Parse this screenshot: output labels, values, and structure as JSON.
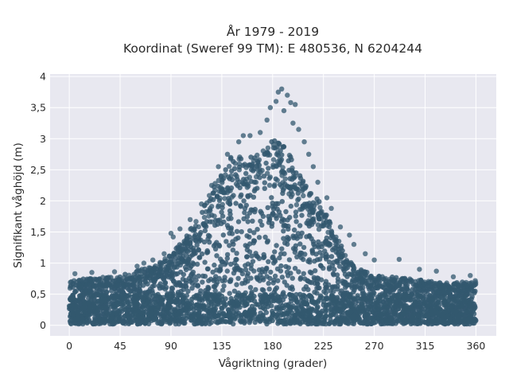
{
  "chart_data": {
    "type": "scatter",
    "title": "År 1979 - 2019",
    "subtitle": "Koordinat (Sweref 99 TM): E 480536, N 6204244",
    "xlabel": "Vågriktning (grader)",
    "ylabel": "Signifikant våghöjd (m)",
    "xlim": [
      -17,
      378
    ],
    "ylim": [
      -0.17,
      4.04
    ],
    "x_ticks": [
      0,
      45,
      90,
      135,
      180,
      225,
      270,
      315,
      360
    ],
    "x_tick_labels": [
      "0",
      "45",
      "90",
      "135",
      "180",
      "225",
      "270",
      "315",
      "360"
    ],
    "y_ticks": [
      0,
      0.5,
      1,
      1.5,
      2,
      2.5,
      3,
      3.5,
      4
    ],
    "y_tick_labels": [
      "0",
      "0,5",
      "1",
      "1,5",
      "2",
      "2,5",
      "3",
      "3,5",
      "4"
    ],
    "grid": true,
    "background_color": "#e8e8f0",
    "marker_color": "#33586f",
    "envelope": {
      "direction_deg": [
        0,
        15,
        30,
        45,
        60,
        75,
        90,
        100,
        110,
        120,
        130,
        140,
        150,
        160,
        170,
        180,
        190,
        200,
        210,
        220,
        230,
        240,
        250,
        260,
        270,
        285,
        300,
        315,
        330,
        345,
        360
      ],
      "max_height_m": [
        0.72,
        0.75,
        0.78,
        0.8,
        0.88,
        0.95,
        1.15,
        1.35,
        1.62,
        1.95,
        2.35,
        2.68,
        2.75,
        2.7,
        2.88,
        3.0,
        2.88,
        2.6,
        2.3,
        2.05,
        1.7,
        1.3,
        1.0,
        0.88,
        0.8,
        0.78,
        0.75,
        0.72,
        0.68,
        0.7,
        0.72
      ]
    },
    "outliers": [
      {
        "x": 188,
        "y": 3.8
      },
      {
        "x": 185,
        "y": 3.75
      },
      {
        "x": 193,
        "y": 3.7
      },
      {
        "x": 178,
        "y": 3.5
      },
      {
        "x": 190,
        "y": 3.45
      },
      {
        "x": 196,
        "y": 3.58
      },
      {
        "x": 200,
        "y": 3.55
      },
      {
        "x": 183,
        "y": 3.6
      },
      {
        "x": 175,
        "y": 3.3
      },
      {
        "x": 198,
        "y": 3.25
      },
      {
        "x": 203,
        "y": 3.15
      },
      {
        "x": 169,
        "y": 3.1
      },
      {
        "x": 160,
        "y": 3.05
      },
      {
        "x": 208,
        "y": 2.95
      },
      {
        "x": 212,
        "y": 2.75
      },
      {
        "x": 216,
        "y": 2.55
      },
      {
        "x": 220,
        "y": 2.3
      },
      {
        "x": 228,
        "y": 2.05
      },
      {
        "x": 232,
        "y": 1.88
      },
      {
        "x": 240,
        "y": 1.58
      },
      {
        "x": 248,
        "y": 1.45
      },
      {
        "x": 252,
        "y": 1.3
      },
      {
        "x": 262,
        "y": 1.15
      },
      {
        "x": 270,
        "y": 1.05
      },
      {
        "x": 292,
        "y": 1.06
      },
      {
        "x": 310,
        "y": 0.9
      },
      {
        "x": 325,
        "y": 0.87
      },
      {
        "x": 90,
        "y": 1.48
      },
      {
        "x": 92,
        "y": 1.42
      },
      {
        "x": 98,
        "y": 1.55
      },
      {
        "x": 107,
        "y": 1.7
      },
      {
        "x": 117,
        "y": 1.95
      },
      {
        "x": 126,
        "y": 2.25
      },
      {
        "x": 132,
        "y": 2.55
      },
      {
        "x": 140,
        "y": 2.75
      },
      {
        "x": 150,
        "y": 2.95
      },
      {
        "x": 154,
        "y": 3.05
      },
      {
        "x": 74,
        "y": 1.05
      },
      {
        "x": 60,
        "y": 0.95
      },
      {
        "x": 40,
        "y": 0.86
      },
      {
        "x": 20,
        "y": 0.85
      },
      {
        "x": 5,
        "y": 0.83
      },
      {
        "x": 355,
        "y": 0.8
      },
      {
        "x": 340,
        "y": 0.78
      },
      {
        "x": 84,
        "y": 1.15
      },
      {
        "x": 66,
        "y": 1.0
      }
    ]
  }
}
